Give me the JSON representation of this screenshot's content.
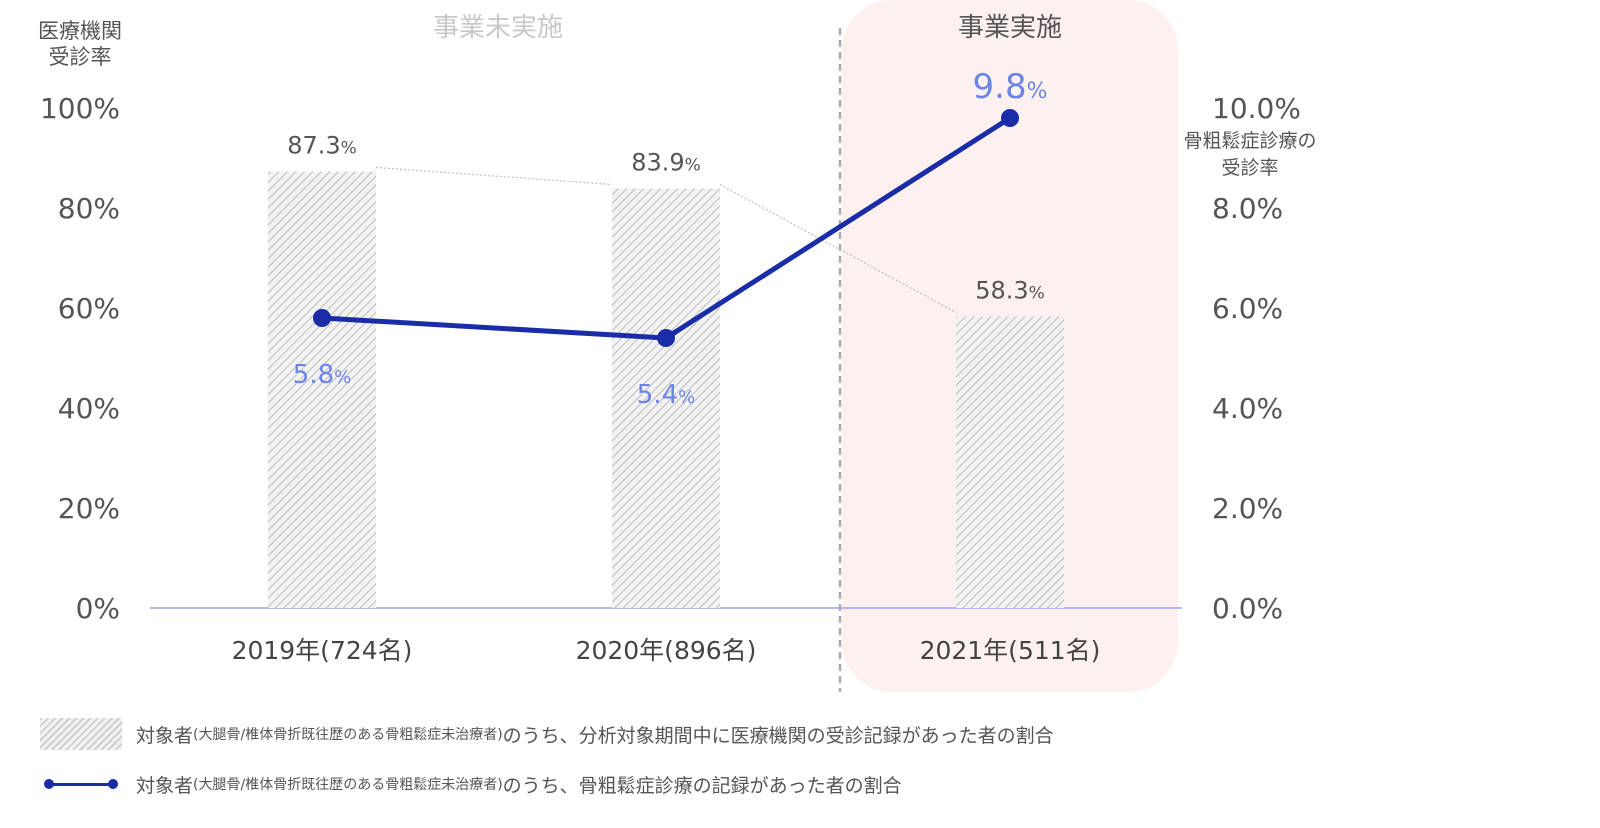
{
  "chart_data": {
    "type": "bar+line",
    "categories": [
      "2019年(724名)",
      "2020年(896名)",
      "2021年(511名)"
    ],
    "bar_values": [
      87.3,
      83.9,
      58.3
    ],
    "bar_labels": [
      "87.3",
      "83.9",
      "58.3"
    ],
    "line_values": [
      5.8,
      5.4,
      9.8
    ],
    "line_labels": [
      "5.8",
      "5.4",
      "9.8"
    ],
    "unit": "%",
    "y_left_label": [
      "医療機関",
      "受診率"
    ],
    "y_left_ticks": [
      "0%",
      "20%",
      "40%",
      "60%",
      "80%",
      "100%"
    ],
    "y_left_range": [
      0,
      100
    ],
    "y_right_label": [
      "骨粗鬆症診療の",
      "受診率"
    ],
    "y_right_ticks": [
      "0.0%",
      "2.0%",
      "4.0%",
      "6.0%",
      "8.0%",
      "10.0%"
    ],
    "y_right_range": [
      0,
      10
    ],
    "region_labels": {
      "before": "事業未実施",
      "after": "事業実施"
    },
    "highlight_category_index": 2,
    "colors": {
      "line": "#1a2ca8",
      "line_label": "#6b84e6",
      "bar": "#cfcfcf",
      "highlight_bg": "#fdf1ef",
      "axis": "#9aa3e8"
    }
  },
  "legend": {
    "bars": {
      "prefix": "対象者",
      "paren": "(大腿骨/椎体骨折既往歴のある骨粗鬆症未治療者)",
      "suffix": "のうち、分析対象期間中に医療機関の受診記録があった者の割合"
    },
    "line": {
      "prefix": "対象者",
      "paren": "(大腿骨/椎体骨折既往歴のある骨粗鬆症未治療者)",
      "suffix": "のうち、骨粗鬆症診療の記録があった者の割合"
    }
  }
}
